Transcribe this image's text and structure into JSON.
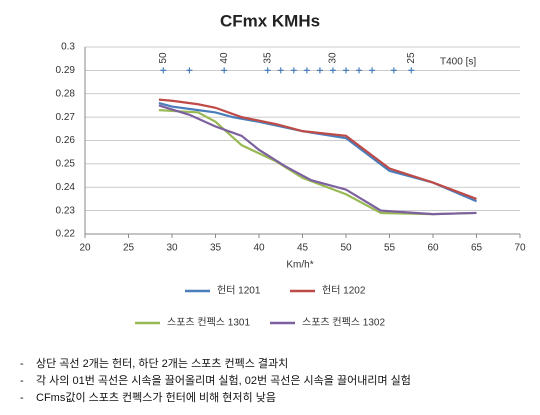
{
  "chart_data": {
    "type": "line",
    "title": "CFmx KMHs",
    "x_label": "Km/h*",
    "xlim": [
      20,
      70
    ],
    "xticks": [
      20,
      25,
      30,
      35,
      40,
      45,
      50,
      55,
      60,
      65,
      70
    ],
    "ylim": [
      0.22,
      0.3
    ],
    "yticks": [
      0.22,
      0.23,
      0.24,
      0.25,
      0.26,
      0.27,
      0.28,
      0.29,
      0.3
    ],
    "grid": true,
    "legend": "bottom",
    "series": [
      {
        "name": "헌터 1201",
        "color": "#4a7ebb",
        "x": [
          28.5,
          30,
          33,
          35,
          37,
          40,
          45,
          50,
          55,
          60,
          65
        ],
        "values": [
          0.276,
          0.2745,
          0.273,
          0.272,
          0.27,
          0.268,
          0.264,
          0.261,
          0.247,
          0.242,
          0.234
        ]
      },
      {
        "name": "헌터 1202",
        "color": "#be4b48",
        "x": [
          28.5,
          30,
          33,
          35,
          38,
          42,
          45,
          50,
          55,
          60,
          65
        ],
        "values": [
          0.2775,
          0.277,
          0.2755,
          0.274,
          0.27,
          0.267,
          0.264,
          0.262,
          0.248,
          0.242,
          0.235
        ]
      },
      {
        "name": "스포츠 컨펙스 1301",
        "color": "#98b954",
        "x": [
          28.5,
          33,
          35,
          38,
          42,
          45,
          50,
          54,
          60,
          65
        ],
        "values": [
          0.273,
          0.272,
          0.268,
          0.258,
          0.251,
          0.244,
          0.237,
          0.229,
          0.2285,
          0.229
        ]
      },
      {
        "name": "스포츠 컨펙스 1302",
        "color": "#7d60a0",
        "x": [
          28.5,
          32,
          35,
          38,
          40,
          43,
          46,
          50,
          54,
          60,
          65
        ],
        "values": [
          0.275,
          0.271,
          0.266,
          0.262,
          0.256,
          0.249,
          0.243,
          0.239,
          0.23,
          0.2285,
          0.229
        ]
      }
    ],
    "t400_title": "T400 [s]",
    "t400_points": {
      "color": "#4a7ebb",
      "x": [
        29,
        32,
        36,
        41,
        42.5,
        44,
        45.5,
        47,
        48.5,
        50,
        51.5,
        53,
        55.5,
        57.5
      ],
      "y": [
        0.29,
        0.29,
        0.29,
        0.29,
        0.29,
        0.29,
        0.29,
        0.29,
        0.29,
        0.29,
        0.29,
        0.29,
        0.29,
        0.29
      ]
    },
    "t400_labels": [
      {
        "x": 29,
        "text": "50"
      },
      {
        "x": 36,
        "text": "40"
      },
      {
        "x": 41,
        "text": "35"
      },
      {
        "x": 48.5,
        "text": "30"
      },
      {
        "x": 57.5,
        "text": "25"
      }
    ]
  },
  "notes": [
    "상단 곡선 2개는 헌터, 하단 2개는 스포츠 컨펙스 결과치",
    "각 사의 01번 곡선은 시속을 끌어올리며 실험, 02번 곡선은 시속을  끌어내리며 실험",
    "CFms값이 스포츠 컨펙스가 헌터에 비해 현저히 낮음"
  ]
}
